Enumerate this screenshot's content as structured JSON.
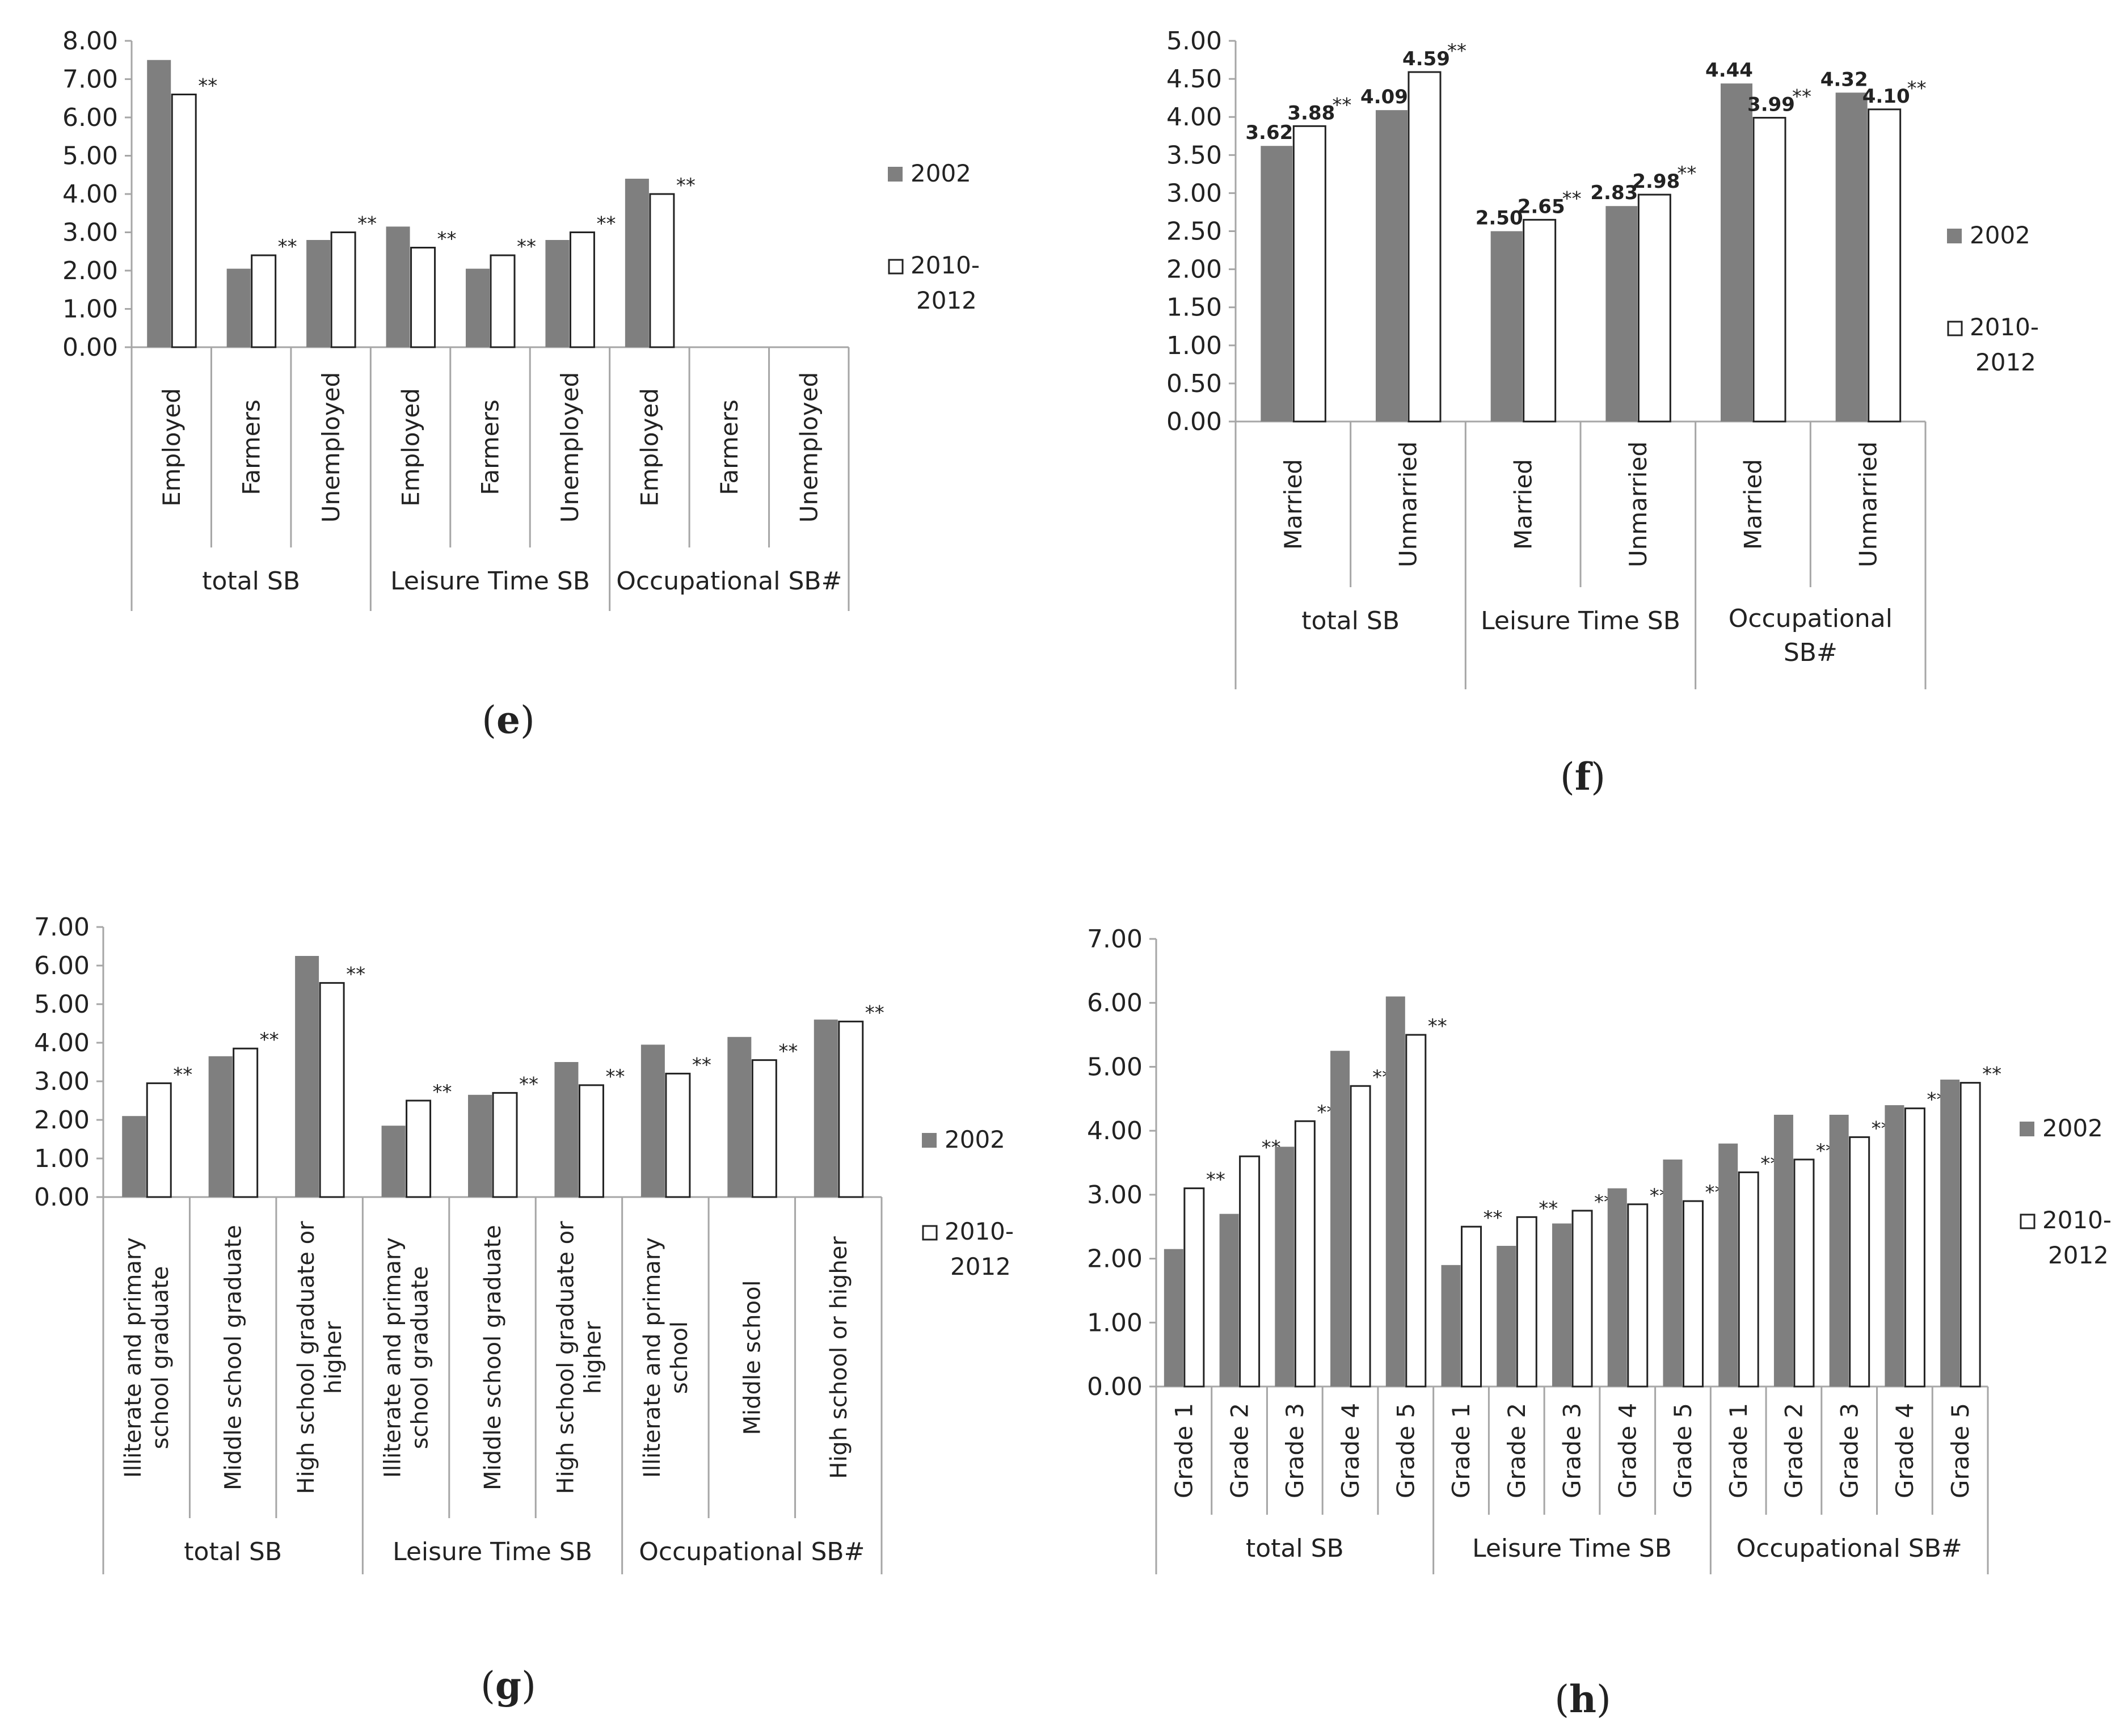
{
  "colors": {
    "bar2002": "#7f7f7f",
    "bar2010": "#ffffff",
    "barStroke": "#222222",
    "axis": "#a6a6a6"
  },
  "chart_data": [
    {
      "panel_label": "e",
      "type": "bar",
      "ylim": [
        0,
        8
      ],
      "y_ticks": [
        "0.00",
        "1.00",
        "2.00",
        "3.00",
        "4.00",
        "5.00",
        "6.00",
        "7.00",
        "8.00"
      ],
      "groups": [
        "total SB",
        "Leisure Time SB",
        "Occupational SB#"
      ],
      "categories": [
        "Employed",
        "Farmers",
        "Unemployed",
        "Employed",
        "Farmers",
        "Unemployed",
        "Employed",
        "Farmers",
        "Unemployed"
      ],
      "category_group": [
        0,
        0,
        0,
        1,
        1,
        1,
        2,
        2,
        2
      ],
      "series": [
        {
          "name": "2002",
          "values": [
            7.5,
            2.05,
            2.8,
            3.15,
            2.05,
            2.8,
            4.4,
            null,
            null
          ]
        },
        {
          "name": "2010-2012",
          "values": [
            6.6,
            2.4,
            3.0,
            2.6,
            2.4,
            3.0,
            4.0,
            null,
            null
          ]
        }
      ],
      "significance": [
        "**",
        "**",
        "**",
        "**",
        "**",
        "**",
        "**",
        "",
        ""
      ],
      "legend": [
        "2002",
        "2010-2012"
      ]
    },
    {
      "panel_label": "f",
      "type": "bar",
      "ylim": [
        0,
        5
      ],
      "y_ticks": [
        "0.00",
        "0.50",
        "1.00",
        "1.50",
        "2.00",
        "2.50",
        "3.00",
        "3.50",
        "4.00",
        "4.50",
        "5.00"
      ],
      "groups": [
        "total SB",
        "Leisure Time SB",
        "Occupational SB#"
      ],
      "categories": [
        "Married",
        "Unmarried",
        "Married",
        "Unmarried",
        "Married",
        "Unmarried"
      ],
      "category_group": [
        0,
        0,
        1,
        1,
        2,
        2
      ],
      "series": [
        {
          "name": "2002",
          "values": [
            3.62,
            4.09,
            2.5,
            2.83,
            4.44,
            4.32
          ]
        },
        {
          "name": "2010-2012",
          "values": [
            3.88,
            4.59,
            2.65,
            2.98,
            3.99,
            4.1
          ]
        }
      ],
      "data_labels_2002": [
        "3.62",
        "4.09",
        "2.50",
        "2.83",
        "4.44",
        "4.32"
      ],
      "data_labels_2010": [
        "3.88",
        "4.59",
        "2.65",
        "2.98",
        "3.99",
        "4.10"
      ],
      "significance": [
        "**",
        "**",
        "**",
        "**",
        "**",
        "**"
      ],
      "legend": [
        "2002",
        "2010-2012"
      ]
    },
    {
      "panel_label": "g",
      "type": "bar",
      "ylim": [
        0,
        7
      ],
      "y_ticks": [
        "0.00",
        "1.00",
        "2.00",
        "3.00",
        "4.00",
        "5.00",
        "6.00",
        "7.00"
      ],
      "groups": [
        "total SB",
        "Leisure Time SB",
        "Occupational SB#"
      ],
      "categories": [
        "Illiterate and primary school graduate",
        "Middle school graduate",
        "High school graduate or higher",
        "Illiterate and primary school graduate",
        "Middle school graduate",
        "High school graduate or higher",
        "Illiterate and primary school",
        "Middle school",
        "High school or higher"
      ],
      "category_group": [
        0,
        0,
        0,
        1,
        1,
        1,
        2,
        2,
        2
      ],
      "series": [
        {
          "name": "2002",
          "values": [
            2.1,
            3.65,
            6.25,
            1.85,
            2.65,
            3.5,
            3.95,
            4.15,
            4.6
          ]
        },
        {
          "name": "2010-2012",
          "values": [
            2.95,
            3.85,
            5.55,
            2.5,
            2.7,
            2.9,
            3.2,
            3.55,
            4.55
          ]
        }
      ],
      "significance": [
        "**",
        "**",
        "**",
        "**",
        "**",
        "**",
        "**",
        "**",
        "**"
      ],
      "legend": [
        "2002",
        "2010-2012"
      ]
    },
    {
      "panel_label": "h",
      "type": "bar",
      "ylim": [
        0,
        7
      ],
      "y_ticks": [
        "0.00",
        "1.00",
        "2.00",
        "3.00",
        "4.00",
        "5.00",
        "6.00",
        "7.00"
      ],
      "groups": [
        "total SB",
        "Leisure Time SB",
        "Occupational SB#"
      ],
      "categories": [
        "Grade 1",
        "Grade 2",
        "Grade 3",
        "Grade 4",
        "Grade 5",
        "Grade 1",
        "Grade 2",
        "Grade 3",
        "Grade 4",
        "Grade 5",
        "Grade 1",
        "Grade 2",
        "Grade 3",
        "Grade 4",
        "Grade 5"
      ],
      "category_group": [
        0,
        0,
        0,
        0,
        0,
        1,
        1,
        1,
        1,
        1,
        2,
        2,
        2,
        2,
        2
      ],
      "series": [
        {
          "name": "2002",
          "values": [
            2.15,
            2.7,
            3.75,
            5.25,
            6.1,
            1.9,
            2.2,
            2.55,
            3.1,
            3.55,
            3.8,
            4.25,
            4.25,
            4.4,
            4.8
          ]
        },
        {
          "name": "2010-2012",
          "values": [
            3.1,
            3.6,
            4.15,
            4.7,
            5.5,
            2.5,
            2.65,
            2.75,
            2.85,
            2.9,
            3.35,
            3.55,
            3.9,
            4.35,
            4.75
          ]
        }
      ],
      "significance": [
        "**",
        "**",
        "**",
        "**",
        "**",
        "**",
        "**",
        "**",
        "**",
        "**",
        "**",
        "**",
        "**",
        "**",
        "**"
      ],
      "legend": [
        "2002",
        "2010-2012"
      ]
    }
  ]
}
